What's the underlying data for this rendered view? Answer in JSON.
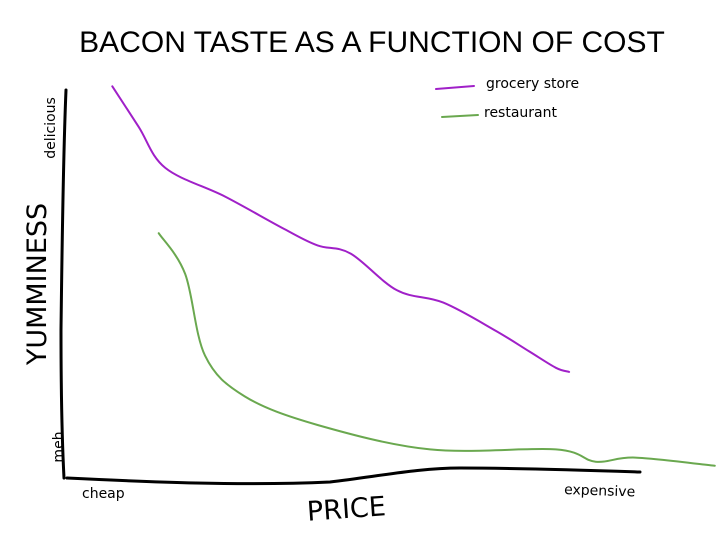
{
  "chart_data": {
    "type": "line",
    "title": "BACON TASTE AS A FUNCTION OF COST",
    "xlabel": "PRICE",
    "ylabel": "YUMMINESS",
    "x_tick_labels": [
      "cheap",
      "expensive"
    ],
    "y_tick_labels": [
      "meh",
      "delicious"
    ],
    "xlim": [
      0,
      1
    ],
    "ylim": [
      0,
      1
    ],
    "grid": false,
    "legend_position": "top-right",
    "series": [
      {
        "name": "grocery store",
        "color": "#a020c8",
        "points": [
          [
            0.07,
            0.96
          ],
          [
            0.11,
            0.86
          ],
          [
            0.15,
            0.76
          ],
          [
            0.24,
            0.69
          ],
          [
            0.33,
            0.61
          ],
          [
            0.38,
            0.57
          ],
          [
            0.43,
            0.55
          ],
          [
            0.5,
            0.46
          ],
          [
            0.57,
            0.43
          ],
          [
            0.65,
            0.36
          ],
          [
            0.7,
            0.31
          ],
          [
            0.74,
            0.27
          ],
          [
            0.76,
            0.26
          ]
        ]
      },
      {
        "name": "restaurant",
        "color": "#6aa84f",
        "points": [
          [
            0.14,
            0.6
          ],
          [
            0.18,
            0.5
          ],
          [
            0.21,
            0.3
          ],
          [
            0.27,
            0.2
          ],
          [
            0.38,
            0.13
          ],
          [
            0.55,
            0.07
          ],
          [
            0.74,
            0.07
          ],
          [
            0.8,
            0.04
          ],
          [
            0.86,
            0.05
          ],
          [
            0.98,
            0.03
          ]
        ]
      }
    ]
  }
}
